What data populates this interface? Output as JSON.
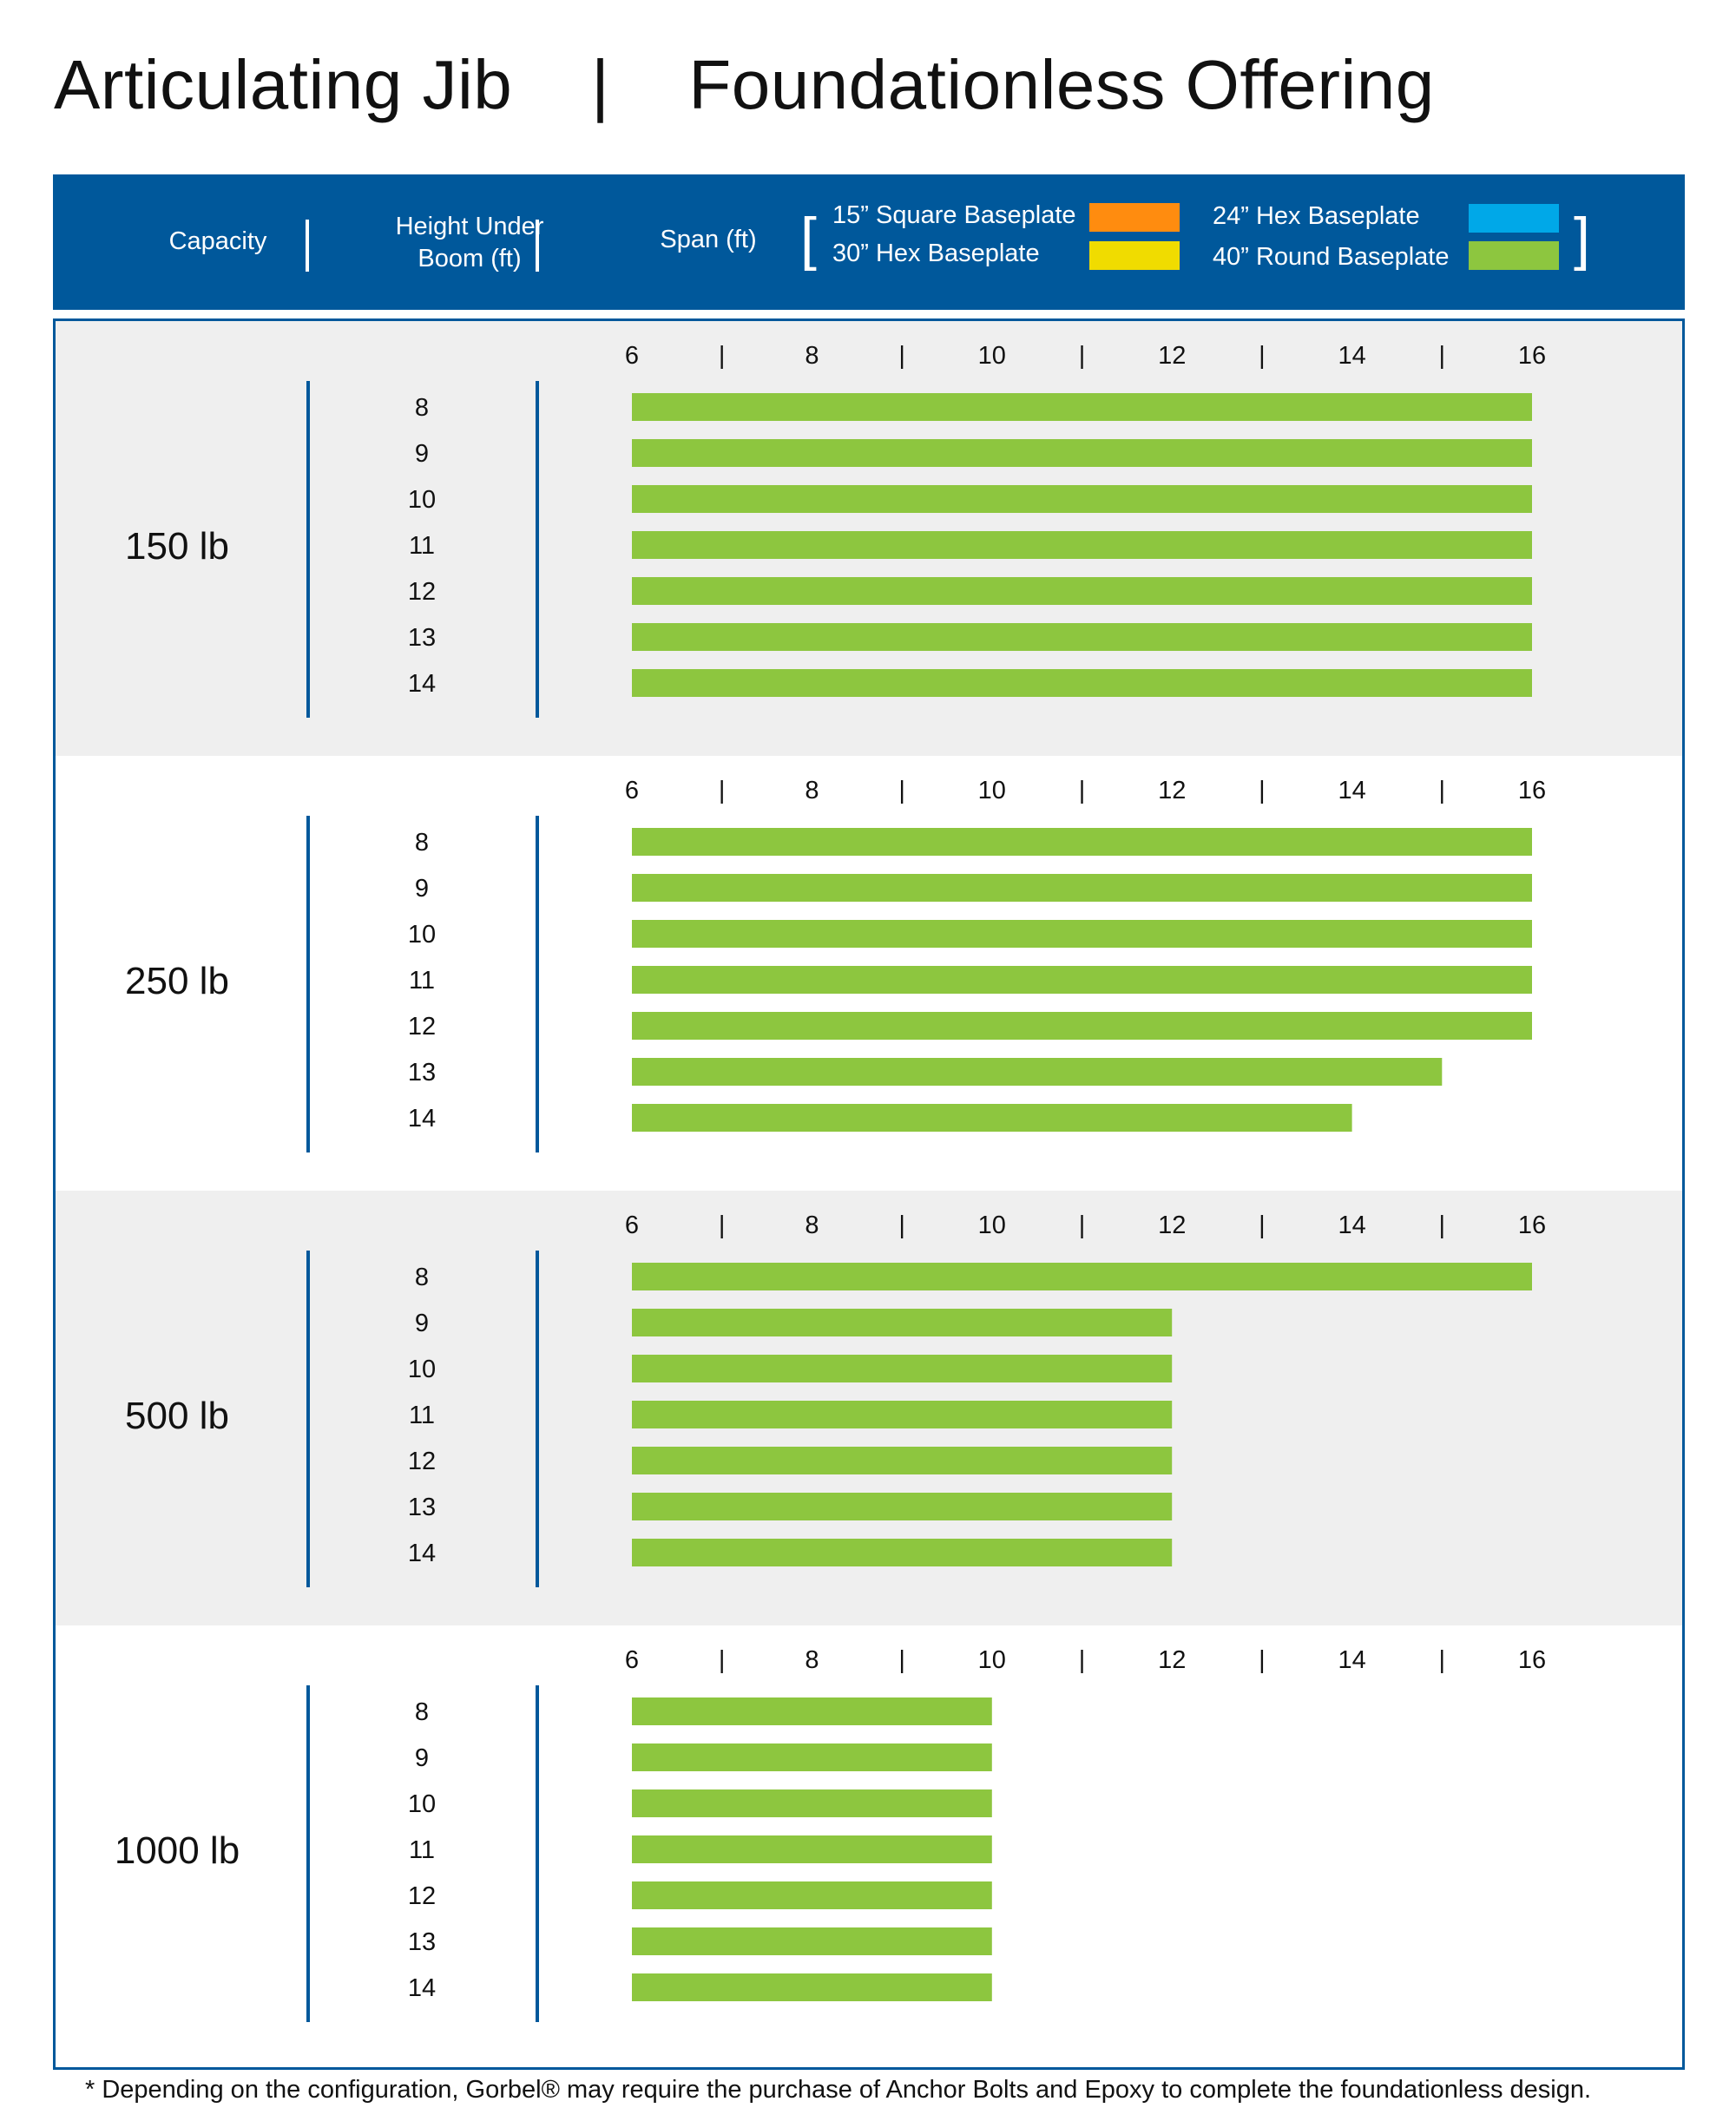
{
  "title": {
    "left": "Articulating Jib",
    "separator": "|",
    "right": "Foundationless Offering"
  },
  "header": {
    "capacity": "Capacity",
    "height_line1": "Height Under",
    "height_line2": "Boom (ft)",
    "span": "Span (ft)",
    "bracket_open": "[",
    "bracket_close": "]"
  },
  "colors": {
    "brand_blue": "#00589b",
    "square_15": "#ff8c0f",
    "hex_24": "#00a8e8",
    "hex_30": "#f0dc00",
    "round_40": "#8dc63f",
    "panel_gray": "#efefef"
  },
  "legend": [
    {
      "label": "15” Square Baseplate",
      "color": "#ff8c0f"
    },
    {
      "label": "24” Hex Baseplate",
      "color": "#00a8e8"
    },
    {
      "label": "30” Hex Baseplate",
      "color": "#f0dc00"
    },
    {
      "label": "40” Round Baseplate",
      "color": "#8dc63f"
    }
  ],
  "chart_data": {
    "type": "bar",
    "orientation": "horizontal",
    "title": "Articulating Jib | Foundationless Offering",
    "xlabel": "Span (ft)",
    "ylabel": "Height Under Boom (ft)",
    "xlim": [
      6,
      16
    ],
    "x_ticks": [
      "6",
      "|",
      "8",
      "|",
      "10",
      "|",
      "12",
      "|",
      "14",
      "|",
      "16"
    ],
    "heights": [
      "8",
      "9",
      "10",
      "11",
      "12",
      "13",
      "14"
    ],
    "series_name": "40” Round Baseplate",
    "panels": [
      {
        "capacity": "150 lb",
        "values": [
          16,
          16,
          16,
          16,
          16,
          16,
          16
        ]
      },
      {
        "capacity": "250 lb",
        "values": [
          16,
          16,
          16,
          16,
          16,
          15,
          14
        ]
      },
      {
        "capacity": "500 lb",
        "values": [
          16,
          12,
          12,
          12,
          12,
          12,
          12
        ]
      },
      {
        "capacity": "1000 lb",
        "values": [
          10,
          10,
          10,
          10,
          10,
          10,
          10
        ]
      }
    ]
  },
  "footnote": "* Depending on the configuration, Gorbel® may require the purchase of Anchor Bolts and Epoxy to complete the foundationless design."
}
